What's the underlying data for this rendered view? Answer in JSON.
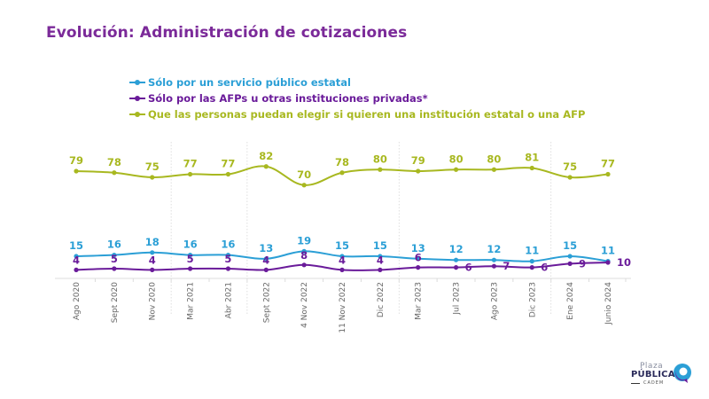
{
  "chart_data": {
    "type": "line",
    "title": "Evolución: Administración de cotizaciones",
    "xlabel": "",
    "ylabel": "",
    "ylim": [
      0,
      90
    ],
    "grid": false,
    "legend_position": "top-left",
    "categories": [
      "Ago 2020",
      "Sept 2020",
      "Nov 2020",
      "Mar 2021",
      "Abr 2021",
      "Sept 2022",
      "4 Nov 2022",
      "11 Nov 2022",
      "Dic 2022",
      "Mar 2023",
      "Jul 2023",
      "Ago 2023",
      "Dic 2023",
      "Ene 2024",
      "Junio 2024"
    ],
    "series": [
      {
        "name": "Sólo por un servicio público estatal",
        "color": "#2b9fd6",
        "values": [
          15,
          16,
          18,
          16,
          16,
          13,
          19,
          15,
          15,
          13,
          12,
          12,
          11,
          15,
          11
        ]
      },
      {
        "name": "Sólo por las AFPs u otras instituciones privadas*",
        "color": "#6a1b9a",
        "values": [
          4,
          5,
          4,
          5,
          5,
          4,
          8,
          4,
          4,
          6,
          6,
          7,
          6,
          9,
          10
        ]
      },
      {
        "name": "Que las personas puedan elegir si quieren una institución estatal o una AFP",
        "color": "#a8b820",
        "values": [
          79,
          78,
          75,
          77,
          77,
          82,
          70,
          78,
          80,
          79,
          80,
          80,
          81,
          75,
          77
        ]
      }
    ],
    "separators_after": [
      "Nov 2020",
      "Abr 2021",
      "Dic 2022",
      "Dic 2023"
    ]
  },
  "logo": {
    "line1": "Plaza",
    "line2": "PÚBLICA",
    "line3": "CADEM"
  }
}
